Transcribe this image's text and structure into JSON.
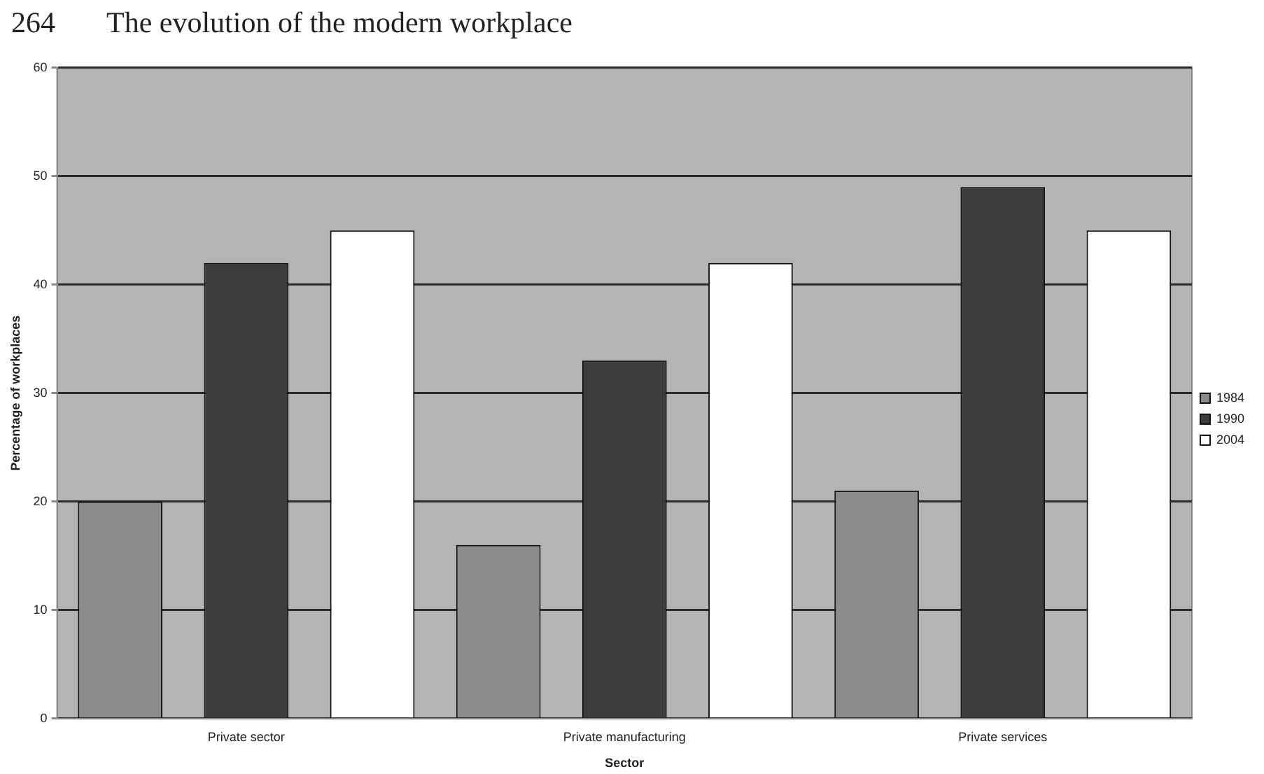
{
  "chart_data": {
    "type": "bar",
    "xlabel": "Sector",
    "ylabel": "Percentage of workplaces",
    "annotations": [
      "264",
      "The evolution of the modern workplace"
    ],
    "categories": [
      "Private sector",
      "Private manufacturing",
      "Private services"
    ],
    "series": [
      {
        "name": "1984",
        "color": "#8c8c8c",
        "values": [
          20,
          16,
          21
        ]
      },
      {
        "name": "1990",
        "color": "#3d3d3d",
        "values": [
          42,
          33,
          49
        ]
      },
      {
        "name": "2004",
        "color": "#ffffff",
        "values": [
          45,
          42,
          45
        ]
      }
    ],
    "ylim": [
      0,
      60
    ],
    "yticks": [
      0,
      10,
      20,
      30,
      40,
      50,
      60
    ],
    "grid": "y",
    "legend": "right"
  }
}
